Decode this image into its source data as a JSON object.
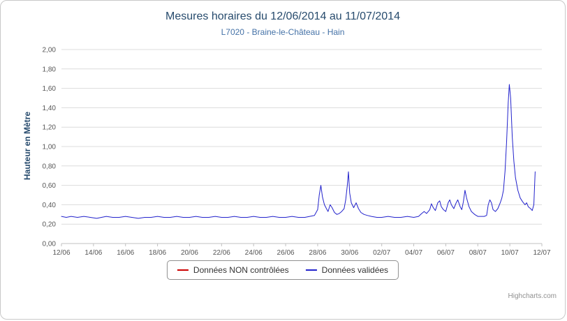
{
  "chart": {
    "credits": "Highcharts.com"
  },
  "chart_data": {
    "type": "line",
    "title": "Mesures horaires du 12/06/2014 au 11/07/2014",
    "subtitle": "L7020 - Braine-le-Château - Hain",
    "ylabel": "Hauteur en Mètre",
    "xlabel": "",
    "ylim": [
      0,
      2
    ],
    "ytick_step": 0.2,
    "ytick_labels": [
      "0,00",
      "0,20",
      "0,40",
      "0,60",
      "0,80",
      "1,00",
      "1,20",
      "1,40",
      "1,60",
      "1,80",
      "2,00"
    ],
    "xlim": [
      0,
      30
    ],
    "x_unit": "days since 12/06/2014",
    "xtick_positions": [
      0,
      2,
      4,
      6,
      8,
      10,
      12,
      14,
      16,
      18,
      20,
      22,
      24,
      26,
      28,
      30
    ],
    "xtick_labels": [
      "12/06",
      "14/06",
      "16/06",
      "18/06",
      "20/06",
      "22/06",
      "24/06",
      "26/06",
      "28/06",
      "30/06",
      "02/07",
      "04/07",
      "06/07",
      "08/07",
      "10/07",
      "12/07"
    ],
    "grid": "horizontal",
    "legend_position": "bottom",
    "colors": {
      "title": "#274b6d",
      "subtitle": "#4572a7",
      "axis_labels": "#555555",
      "grid": "#dcdcdc",
      "axis_line": "#c0c0c0",
      "frame_border": "#c8c8c8",
      "credits": "#909090"
    },
    "series": [
      {
        "name": "Données NON contrôlées",
        "color": "#cc0000",
        "points": []
      },
      {
        "name": "Données validées",
        "color": "#2222cc",
        "points": [
          [
            0.0,
            0.28
          ],
          [
            0.3,
            0.27
          ],
          [
            0.6,
            0.28
          ],
          [
            1.0,
            0.27
          ],
          [
            1.4,
            0.28
          ],
          [
            1.8,
            0.27
          ],
          [
            2.2,
            0.26
          ],
          [
            2.5,
            0.27
          ],
          [
            2.8,
            0.28
          ],
          [
            3.2,
            0.27
          ],
          [
            3.6,
            0.27
          ],
          [
            4.0,
            0.28
          ],
          [
            4.4,
            0.27
          ],
          [
            4.8,
            0.26
          ],
          [
            5.2,
            0.27
          ],
          [
            5.6,
            0.27
          ],
          [
            6.0,
            0.28
          ],
          [
            6.4,
            0.27
          ],
          [
            6.8,
            0.27
          ],
          [
            7.2,
            0.28
          ],
          [
            7.6,
            0.27
          ],
          [
            8.0,
            0.27
          ],
          [
            8.4,
            0.28
          ],
          [
            8.8,
            0.27
          ],
          [
            9.2,
            0.27
          ],
          [
            9.6,
            0.28
          ],
          [
            10.0,
            0.27
          ],
          [
            10.4,
            0.27
          ],
          [
            10.8,
            0.28
          ],
          [
            11.2,
            0.27
          ],
          [
            11.6,
            0.27
          ],
          [
            12.0,
            0.28
          ],
          [
            12.4,
            0.27
          ],
          [
            12.8,
            0.27
          ],
          [
            13.2,
            0.28
          ],
          [
            13.6,
            0.27
          ],
          [
            14.0,
            0.27
          ],
          [
            14.4,
            0.28
          ],
          [
            14.8,
            0.27
          ],
          [
            15.2,
            0.27
          ],
          [
            15.5,
            0.28
          ],
          [
            15.8,
            0.29
          ],
          [
            16.0,
            0.35
          ],
          [
            16.1,
            0.5
          ],
          [
            16.2,
            0.6
          ],
          [
            16.3,
            0.48
          ],
          [
            16.42,
            0.4
          ],
          [
            16.55,
            0.36
          ],
          [
            16.65,
            0.33
          ],
          [
            16.78,
            0.4
          ],
          [
            16.9,
            0.37
          ],
          [
            17.05,
            0.32
          ],
          [
            17.2,
            0.3
          ],
          [
            17.35,
            0.31
          ],
          [
            17.5,
            0.33
          ],
          [
            17.65,
            0.36
          ],
          [
            17.75,
            0.45
          ],
          [
            17.85,
            0.6
          ],
          [
            17.92,
            0.74
          ],
          [
            18.0,
            0.52
          ],
          [
            18.1,
            0.42
          ],
          [
            18.25,
            0.37
          ],
          [
            18.4,
            0.42
          ],
          [
            18.55,
            0.36
          ],
          [
            18.7,
            0.32
          ],
          [
            18.9,
            0.3
          ],
          [
            19.1,
            0.29
          ],
          [
            19.35,
            0.28
          ],
          [
            19.7,
            0.27
          ],
          [
            20.0,
            0.27
          ],
          [
            20.4,
            0.28
          ],
          [
            20.8,
            0.27
          ],
          [
            21.2,
            0.27
          ],
          [
            21.6,
            0.28
          ],
          [
            22.0,
            0.27
          ],
          [
            22.3,
            0.28
          ],
          [
            22.5,
            0.31
          ],
          [
            22.65,
            0.33
          ],
          [
            22.8,
            0.31
          ],
          [
            23.0,
            0.35
          ],
          [
            23.1,
            0.41
          ],
          [
            23.22,
            0.37
          ],
          [
            23.35,
            0.34
          ],
          [
            23.5,
            0.42
          ],
          [
            23.62,
            0.44
          ],
          [
            23.72,
            0.38
          ],
          [
            23.85,
            0.35
          ],
          [
            24.0,
            0.33
          ],
          [
            24.15,
            0.42
          ],
          [
            24.25,
            0.45
          ],
          [
            24.35,
            0.4
          ],
          [
            24.5,
            0.36
          ],
          [
            24.65,
            0.42
          ],
          [
            24.75,
            0.45
          ],
          [
            24.9,
            0.38
          ],
          [
            25.0,
            0.35
          ],
          [
            25.1,
            0.43
          ],
          [
            25.2,
            0.55
          ],
          [
            25.3,
            0.47
          ],
          [
            25.45,
            0.38
          ],
          [
            25.6,
            0.33
          ],
          [
            25.8,
            0.3
          ],
          [
            26.0,
            0.28
          ],
          [
            26.2,
            0.28
          ],
          [
            26.4,
            0.28
          ],
          [
            26.55,
            0.29
          ],
          [
            26.65,
            0.4
          ],
          [
            26.75,
            0.45
          ],
          [
            26.85,
            0.42
          ],
          [
            26.95,
            0.35
          ],
          [
            27.1,
            0.33
          ],
          [
            27.25,
            0.36
          ],
          [
            27.4,
            0.42
          ],
          [
            27.5,
            0.47
          ],
          [
            27.6,
            0.55
          ],
          [
            27.7,
            0.75
          ],
          [
            27.8,
            1.05
          ],
          [
            27.9,
            1.45
          ],
          [
            27.97,
            1.64
          ],
          [
            28.05,
            1.5
          ],
          [
            28.15,
            1.1
          ],
          [
            28.25,
            0.85
          ],
          [
            28.35,
            0.68
          ],
          [
            28.5,
            0.55
          ],
          [
            28.65,
            0.47
          ],
          [
            28.8,
            0.43
          ],
          [
            28.95,
            0.4
          ],
          [
            29.05,
            0.42
          ],
          [
            29.15,
            0.38
          ],
          [
            29.3,
            0.36
          ],
          [
            29.4,
            0.34
          ],
          [
            29.5,
            0.4
          ],
          [
            29.58,
            0.74
          ]
        ]
      }
    ]
  }
}
